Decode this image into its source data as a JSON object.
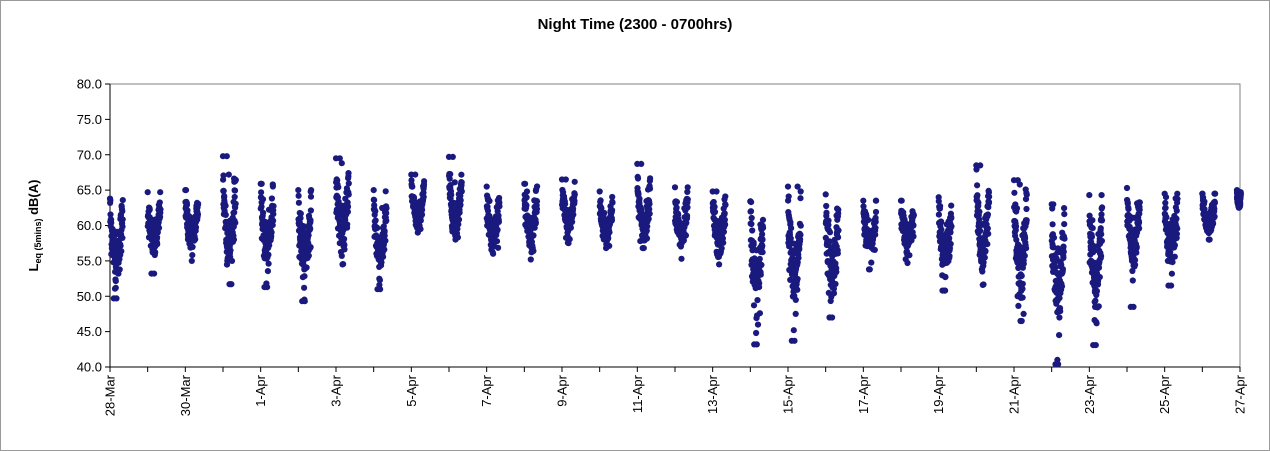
{
  "chart_data": {
    "type": "scatter",
    "title": "Night Time (2300 - 0700hrs)",
    "ylabel_main": "L",
    "ylabel_sub": "eq (5mins)",
    "ylabel_unit": " dB(A)",
    "ylim": [
      40.0,
      80.0
    ],
    "y_ticks": [
      "40.0",
      "45.0",
      "50.0",
      "55.0",
      "60.0",
      "65.0",
      "70.0",
      "75.0",
      "80.0"
    ],
    "x_ticks": [
      "28-Mar",
      "30-Mar",
      "1-Apr",
      "3-Apr",
      "5-Apr",
      "7-Apr",
      "9-Apr",
      "11-Apr",
      "13-Apr",
      "15-Apr",
      "17-Apr",
      "19-Apr",
      "21-Apr",
      "23-Apr",
      "25-Apr",
      "27-Apr"
    ],
    "x_start": "28-Mar",
    "x_end": "27-Apr",
    "grid": false,
    "marker_color": "#1a1a7e",
    "nights": [
      {
        "start": "28-Mar",
        "end": "29-Mar",
        "min": 49.7,
        "max": 63.8,
        "mean": 58.5,
        "sd": 3.0,
        "outliers": [
          49.7,
          51.2
        ]
      },
      {
        "start": "29-Mar",
        "end": "30-Mar",
        "min": 53.2,
        "max": 64.7,
        "mean": 59.8,
        "sd": 2.2,
        "outliers": [
          53.2
        ]
      },
      {
        "start": "30-Mar",
        "end": "31-Mar",
        "min": 55.0,
        "max": 65.0,
        "mean": 60.4,
        "sd": 2.0,
        "outliers": []
      },
      {
        "start": "31-Mar",
        "end": "1-Apr",
        "min": 51.7,
        "max": 69.8,
        "mean": 60.2,
        "sd": 3.2,
        "outliers": [
          69.8,
          67.2,
          51.7
        ]
      },
      {
        "start": "1-Apr",
        "end": "2-Apr",
        "min": 51.3,
        "max": 65.9,
        "mean": 59.8,
        "sd": 2.8,
        "outliers": [
          51.3,
          51.8
        ]
      },
      {
        "start": "2-Apr",
        "end": "3-Apr",
        "min": 49.3,
        "max": 65.0,
        "mean": 59.0,
        "sd": 3.0,
        "outliers": [
          49.3,
          51.2
        ]
      },
      {
        "start": "3-Apr",
        "end": "4-Apr",
        "min": 54.5,
        "max": 69.5,
        "mean": 61.0,
        "sd": 2.8,
        "outliers": [
          69.5,
          68.8
        ]
      },
      {
        "start": "4-Apr",
        "end": "5-Apr",
        "min": 51.0,
        "max": 65.0,
        "mean": 58.6,
        "sd": 2.9,
        "outliers": [
          51.0,
          51.6
        ]
      },
      {
        "start": "5-Apr",
        "end": "6-Apr",
        "min": 59.0,
        "max": 67.2,
        "mean": 62.0,
        "sd": 1.5,
        "outliers": [
          67.2
        ]
      },
      {
        "start": "6-Apr",
        "end": "7-Apr",
        "min": 58.0,
        "max": 69.7,
        "mean": 61.5,
        "sd": 1.8,
        "outliers": [
          69.7,
          66.1
        ]
      },
      {
        "start": "7-Apr",
        "end": "8-Apr",
        "min": 56.0,
        "max": 65.5,
        "mean": 60.3,
        "sd": 2.1,
        "outliers": []
      },
      {
        "start": "8-Apr",
        "end": "9-Apr",
        "min": 55.2,
        "max": 65.9,
        "mean": 60.2,
        "sd": 2.3,
        "outliers": []
      },
      {
        "start": "9-Apr",
        "end": "10-Apr",
        "min": 57.5,
        "max": 66.5,
        "mean": 61.2,
        "sd": 1.9,
        "outliers": [
          66.5
        ]
      },
      {
        "start": "10-Apr",
        "end": "11-Apr",
        "min": 56.8,
        "max": 64.8,
        "mean": 60.3,
        "sd": 1.8,
        "outliers": []
      },
      {
        "start": "11-Apr",
        "end": "12-Apr",
        "min": 56.8,
        "max": 68.7,
        "mean": 60.5,
        "sd": 2.0,
        "outliers": [
          68.7
        ]
      },
      {
        "start": "12-Apr",
        "end": "13-Apr",
        "min": 55.3,
        "max": 65.4,
        "mean": 59.9,
        "sd": 2.1,
        "outliers": []
      },
      {
        "start": "13-Apr",
        "end": "14-Apr",
        "min": 54.5,
        "max": 64.8,
        "mean": 59.4,
        "sd": 2.1,
        "outliers": [
          64.8
        ]
      },
      {
        "start": "14-Apr",
        "end": "15-Apr",
        "min": 43.2,
        "max": 63.4,
        "mean": 56.5,
        "sd": 3.8,
        "outliers": [
          43.2,
          44.8,
          46.0,
          47.6
        ]
      },
      {
        "start": "15-Apr",
        "end": "16-Apr",
        "min": 43.7,
        "max": 65.5,
        "mean": 56.8,
        "sd": 3.8,
        "outliers": [
          43.7,
          45.2,
          47.5,
          65.5
        ]
      },
      {
        "start": "16-Apr",
        "end": "17-Apr",
        "min": 47.0,
        "max": 64.4,
        "mean": 57.0,
        "sd": 3.5,
        "outliers": [
          47.0
        ]
      },
      {
        "start": "17-Apr",
        "end": "18-Apr",
        "min": 53.8,
        "max": 63.5,
        "mean": 59.2,
        "sd": 2.0,
        "outliers": []
      },
      {
        "start": "18-Apr",
        "end": "19-Apr",
        "min": 54.7,
        "max": 63.5,
        "mean": 59.6,
        "sd": 1.9,
        "outliers": []
      },
      {
        "start": "19-Apr",
        "end": "20-Apr",
        "min": 50.8,
        "max": 64.0,
        "mean": 58.4,
        "sd": 2.5,
        "outliers": [
          50.8
        ]
      },
      {
        "start": "20-Apr",
        "end": "21-Apr",
        "min": 51.6,
        "max": 68.5,
        "mean": 58.8,
        "sd": 2.7,
        "outliers": [
          68.5
        ]
      },
      {
        "start": "21-Apr",
        "end": "22-Apr",
        "min": 46.5,
        "max": 66.4,
        "mean": 56.5,
        "sd": 3.8,
        "outliers": [
          66.4,
          65.8,
          46.5,
          47.5
        ]
      },
      {
        "start": "22-Apr",
        "end": "23-Apr",
        "min": 40.4,
        "max": 63.0,
        "mean": 55.5,
        "sd": 4.2,
        "outliers": [
          40.4,
          41.0,
          47.0
        ]
      },
      {
        "start": "23-Apr",
        "end": "24-Apr",
        "min": 43.1,
        "max": 64.3,
        "mean": 56.5,
        "sd": 3.7,
        "outliers": [
          43.1,
          48.5
        ]
      },
      {
        "start": "24-Apr",
        "end": "25-Apr",
        "min": 48.5,
        "max": 65.3,
        "mean": 59.8,
        "sd": 2.9,
        "outliers": [
          48.5
        ]
      },
      {
        "start": "25-Apr",
        "end": "26-Apr",
        "min": 51.5,
        "max": 64.5,
        "mean": 59.5,
        "sd": 2.5,
        "outliers": [
          51.5
        ]
      },
      {
        "start": "26-Apr",
        "end": "27-Apr",
        "min": 58.0,
        "max": 64.5,
        "mean": 61.5,
        "sd": 1.5,
        "outliers": []
      },
      {
        "start": "27-Apr",
        "end": "27-Apr",
        "min": 62.5,
        "max": 65.0,
        "mean": 63.5,
        "sd": 0.6,
        "outliers": []
      }
    ]
  }
}
